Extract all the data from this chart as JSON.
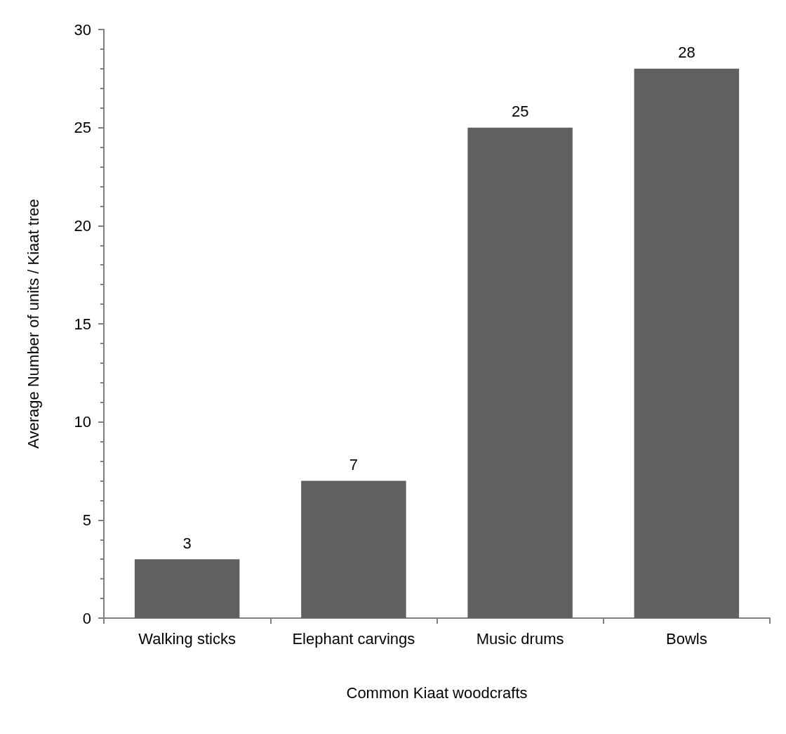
{
  "chart_data": {
    "type": "bar",
    "xlabel": "Common Kiaat woodcrafts",
    "ylabel": "Average Number of units / Kiaat tree",
    "categories": [
      "Walking sticks",
      "Elephant carvings",
      "Music drums",
      "Bowls"
    ],
    "values": [
      3,
      7,
      25,
      28
    ],
    "color": "#606060",
    "ylim": [
      0,
      30
    ],
    "yticks": [
      0,
      5,
      10,
      15,
      20,
      25,
      30
    ],
    "grid": false,
    "data_labels": true
  }
}
